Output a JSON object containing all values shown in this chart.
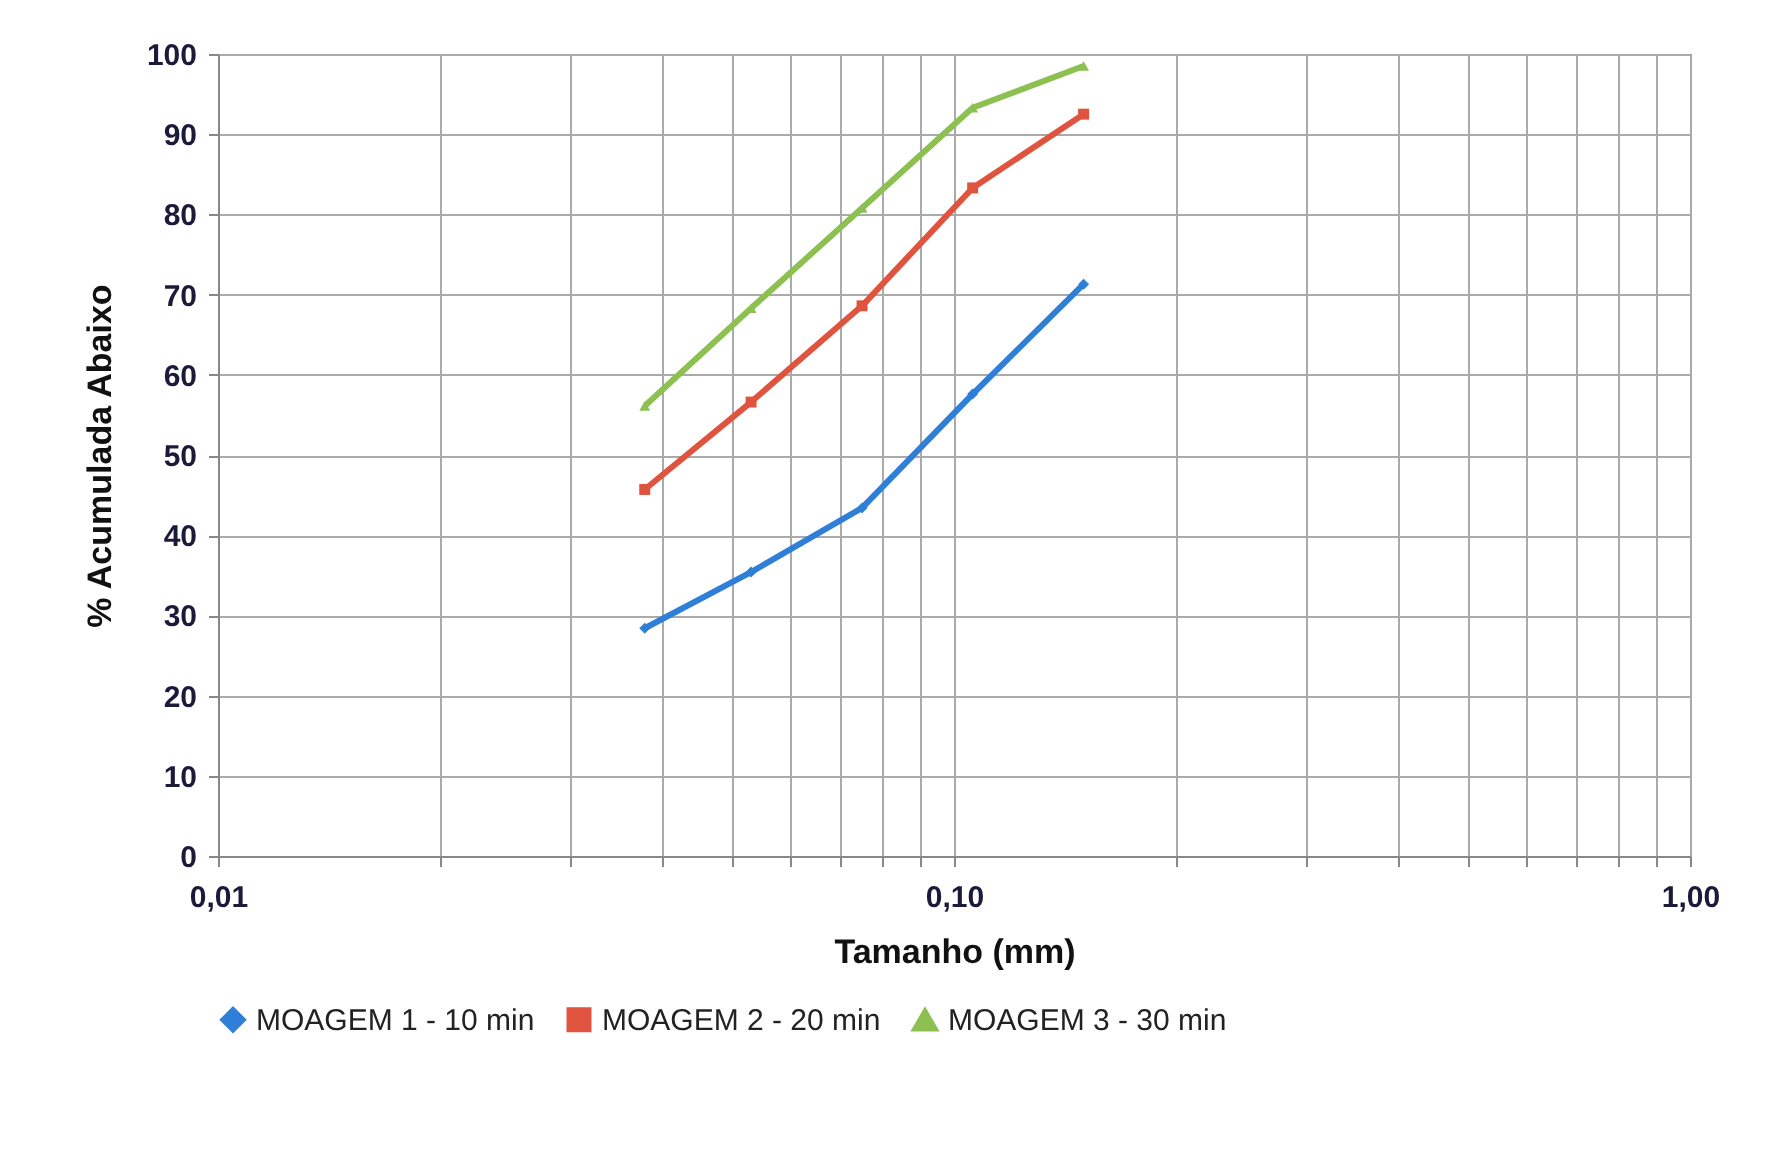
{
  "chart_data": {
    "type": "line",
    "xlabel": "Tamanho (mm)",
    "ylabel": "% Acumulada Abaixo",
    "log": "x",
    "grid": true,
    "legend": "bottom",
    "x": [
      0.038,
      0.053,
      0.075,
      0.106,
      0.15
    ],
    "xlim": [
      0.01,
      1
    ],
    "xticks": [
      {
        "value": 0.01,
        "label": "0,01"
      },
      {
        "value": 0.02,
        "label": null
      },
      {
        "value": 0.03,
        "label": null
      },
      {
        "value": 0.04,
        "label": null
      },
      {
        "value": 0.05,
        "label": null
      },
      {
        "value": 0.06,
        "label": null
      },
      {
        "value": 0.07,
        "label": null
      },
      {
        "value": 0.08,
        "label": null
      },
      {
        "value": 0.09,
        "label": null
      },
      {
        "value": 0.1,
        "label": "0,10"
      },
      {
        "value": 0.2,
        "label": null
      },
      {
        "value": 0.3,
        "label": null
      },
      {
        "value": 0.4,
        "label": null
      },
      {
        "value": 0.5,
        "label": null
      },
      {
        "value": 0.6,
        "label": null
      },
      {
        "value": 0.7,
        "label": null
      },
      {
        "value": 0.8,
        "label": null
      },
      {
        "value": 0.9,
        "label": null
      },
      {
        "value": 1,
        "label": "1,00"
      }
    ],
    "ylim": [
      0,
      100
    ],
    "yticks": [
      0,
      10,
      20,
      30,
      40,
      50,
      60,
      70,
      80,
      90,
      100
    ],
    "series": [
      {
        "name": "MOAGEM 1 - 10 min",
        "color": "#2f7ed8",
        "marker": "diamond",
        "values": [
          28.4,
          35.4,
          43.4,
          57.6,
          71.3
        ]
      },
      {
        "name": "MOAGEM 2 - 20 min",
        "color": "#e0533e",
        "marker": "square",
        "values": [
          45.7,
          56.6,
          68.6,
          83.3,
          92.5
        ]
      },
      {
        "name": "MOAGEM 3 - 30 min",
        "color": "#8cc152",
        "marker": "triangle",
        "values": [
          56.1,
          68.3,
          80.8,
          93.3,
          98.5
        ]
      }
    ]
  }
}
